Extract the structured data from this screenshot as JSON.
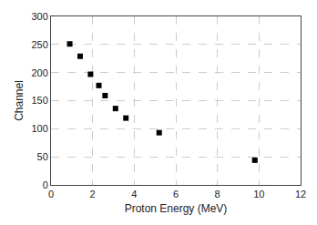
{
  "chart_data": {
    "type": "scatter",
    "x": [
      0.9,
      1.4,
      1.9,
      2.3,
      2.6,
      3.1,
      3.6,
      5.2,
      9.8
    ],
    "y": [
      251,
      229,
      197,
      177,
      159,
      136,
      119,
      93,
      44
    ],
    "xlabel": "Proton Energy (MeV)",
    "ylabel": "Channel",
    "xlim": [
      0,
      12
    ],
    "ylim": [
      0,
      300
    ],
    "xticks": [
      0,
      2,
      4,
      6,
      8,
      10,
      12
    ],
    "yticks": [
      0,
      50,
      100,
      150,
      200,
      250,
      300
    ],
    "color": "black",
    "marker": "square",
    "grid": true
  }
}
